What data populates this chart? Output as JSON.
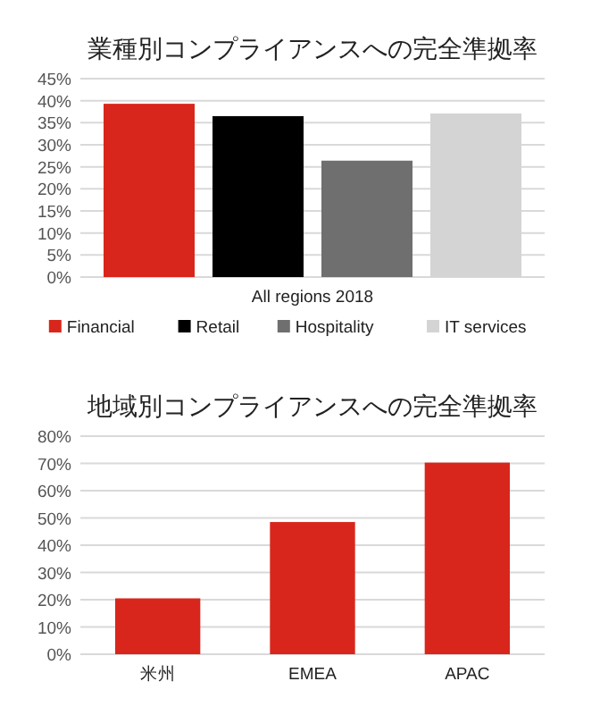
{
  "chart_data": [
    {
      "type": "bar",
      "title": "業種別コンプライアンスへの完全準拠率",
      "categories": [
        "All regions 2018"
      ],
      "series": [
        {
          "name": "Financial",
          "color": "#d9261c",
          "values": [
            39.3
          ]
        },
        {
          "name": "Retail",
          "color": "#000000",
          "values": [
            36.5
          ]
        },
        {
          "name": "Hospitality",
          "color": "#6f6f6f",
          "values": [
            26.4
          ]
        },
        {
          "name": "IT services",
          "color": "#d4d4d4",
          "values": [
            37.1
          ]
        }
      ],
      "ylim": [
        0,
        45
      ],
      "yticks": [
        {
          "value": 0,
          "label": "0%"
        },
        {
          "value": 5,
          "label": "5%"
        },
        {
          "value": 10,
          "label": "10%"
        },
        {
          "value": 15,
          "label": "15%"
        },
        {
          "value": 20,
          "label": "20%"
        },
        {
          "value": 25,
          "label": "25%"
        },
        {
          "value": 30,
          "label": "30%"
        },
        {
          "value": 35,
          "label": "35%"
        },
        {
          "value": 40,
          "label": "40%"
        },
        {
          "value": 45,
          "label": "45%"
        }
      ],
      "grid": "y",
      "legend": "bottom"
    },
    {
      "type": "bar",
      "title": "地域別コンプライアンスへの完全準拠率",
      "categories": [
        "米州",
        "EMEA",
        "APAC"
      ],
      "series": [
        {
          "color": "#d9261c",
          "values": [
            20.5,
            48.5,
            70.3
          ]
        }
      ],
      "ylim": [
        0,
        80
      ],
      "yticks": [
        {
          "value": 0,
          "label": "0%"
        },
        {
          "value": 10,
          "label": "10%"
        },
        {
          "value": 20,
          "label": "20%"
        },
        {
          "value": 30,
          "label": "30%"
        },
        {
          "value": 40,
          "label": "40%"
        },
        {
          "value": 50,
          "label": "50%"
        },
        {
          "value": 60,
          "label": "60%"
        },
        {
          "value": 70,
          "label": "70%"
        },
        {
          "value": 80,
          "label": "80%"
        }
      ],
      "grid": "y"
    }
  ]
}
